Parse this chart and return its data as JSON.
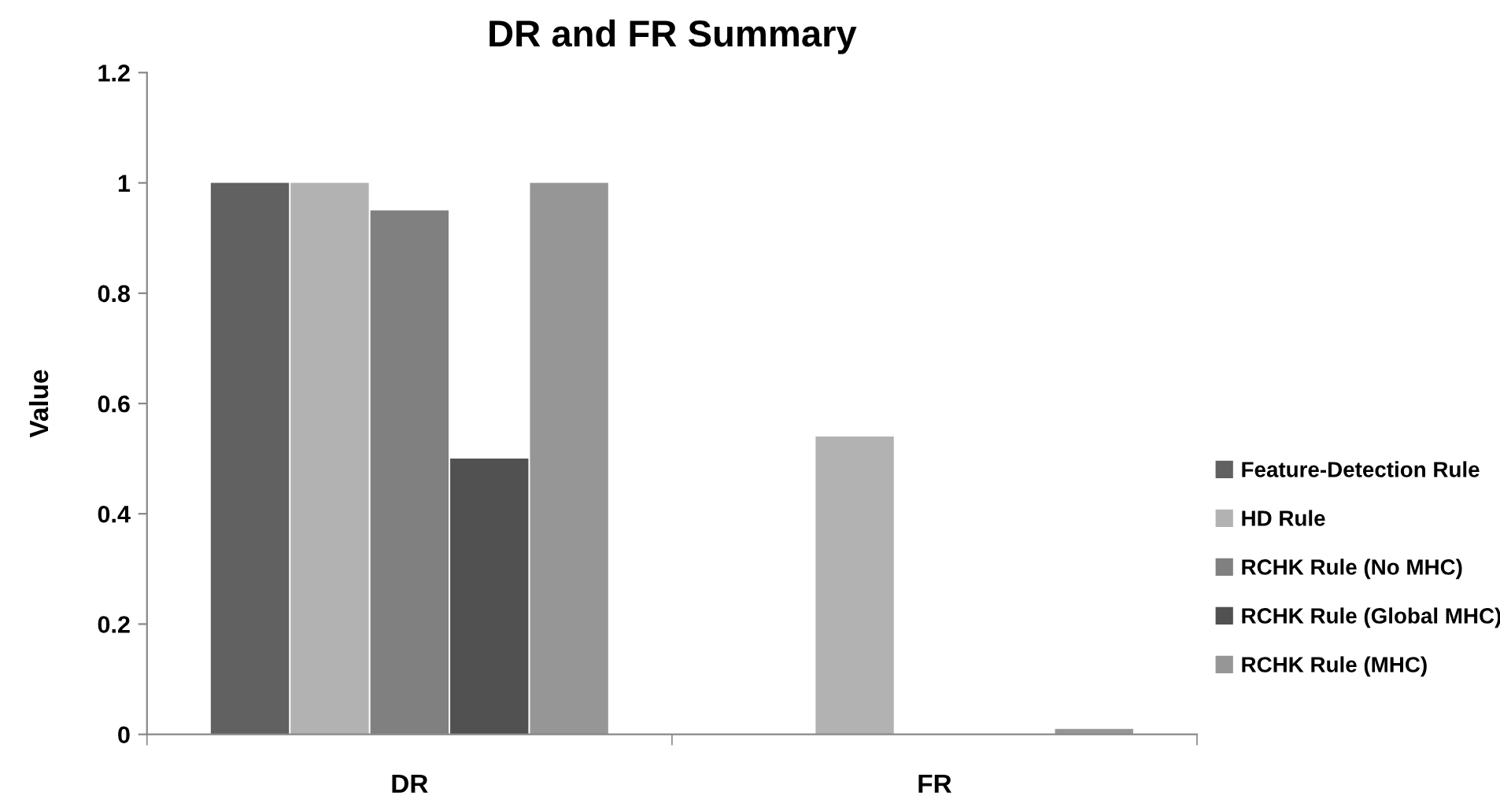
{
  "chart_data": {
    "type": "bar",
    "title": "DR and FR Summary",
    "ylabel": "Value",
    "categories": [
      "DR",
      "FR"
    ],
    "series": [
      {
        "name": "Feature-Detection Rule",
        "color": "#616161",
        "values": [
          1,
          0
        ]
      },
      {
        "name": "HD Rule",
        "color": "#b2b2b2",
        "values": [
          1,
          0.54
        ]
      },
      {
        "name": "RCHK Rule (No MHC)",
        "color": "#808080",
        "values": [
          0.95,
          0
        ]
      },
      {
        "name": "RCHK Rule (Global MHC)",
        "color": "#515151",
        "values": [
          0.5,
          0
        ]
      },
      {
        "name": "RCHK Rule (MHC)",
        "color": "#969696",
        "values": [
          1,
          0.01
        ]
      }
    ],
    "ylim": [
      0,
      1.2
    ],
    "yticks": [
      0,
      0.2,
      0.4,
      0.6,
      0.8,
      1,
      1.2
    ],
    "grid": false,
    "legend": "right"
  }
}
